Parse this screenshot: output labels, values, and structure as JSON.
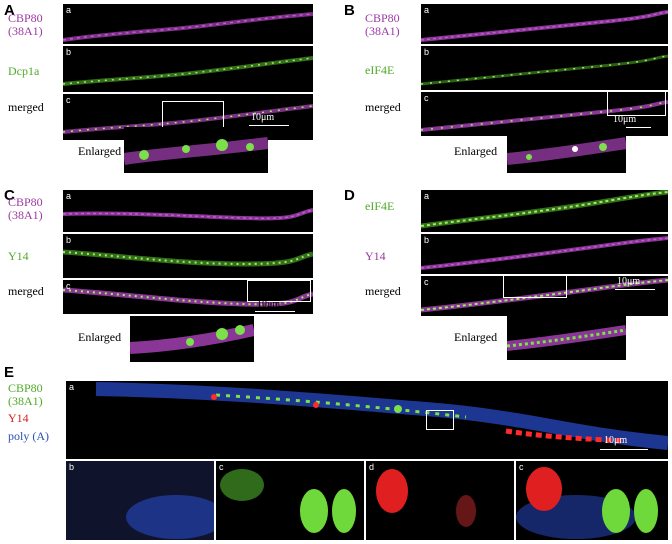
{
  "panels": {
    "A": {
      "letter": "A",
      "row_labels": [
        "CBP80\n(38A1)",
        "Dcp1a",
        "merged"
      ],
      "sub_labels": [
        "a",
        "b",
        "c"
      ],
      "scale": "10μm",
      "enlarged": "Enlarged"
    },
    "B": {
      "letter": "B",
      "row_labels": [
        "CBP80\n(38A1)",
        "eIF4E",
        "merged"
      ],
      "sub_labels": [
        "a",
        "b",
        "c"
      ],
      "scale": "10μm",
      "enlarged": "Enlarged"
    },
    "C": {
      "letter": "C",
      "row_labels": [
        "CBP80\n(38A1)",
        "Y14",
        "merged"
      ],
      "sub_labels": [
        "a",
        "b",
        "c"
      ],
      "scale": "10μm",
      "enlarged": "Enlarged"
    },
    "D": {
      "letter": "D",
      "row_labels": [
        "eIF4E",
        "Y14",
        "merged"
      ],
      "sub_labels": [
        "a",
        "b",
        "c"
      ],
      "scale": "10μm",
      "enlarged": "Enlarged"
    },
    "E": {
      "letter": "E",
      "label_line1": "CBP80",
      "label_line2": "(38A1)",
      "label_line3": "Y14",
      "label_line4": "poly (A)",
      "main_sub": "a",
      "scale": "10μm",
      "tile_subs": [
        "b",
        "c",
        "d",
        "c"
      ]
    }
  },
  "colors": {
    "magenta": "#b04cc0",
    "green": "#7be04a",
    "red": "#ff2a2a",
    "blue": "#3a5ad8"
  }
}
